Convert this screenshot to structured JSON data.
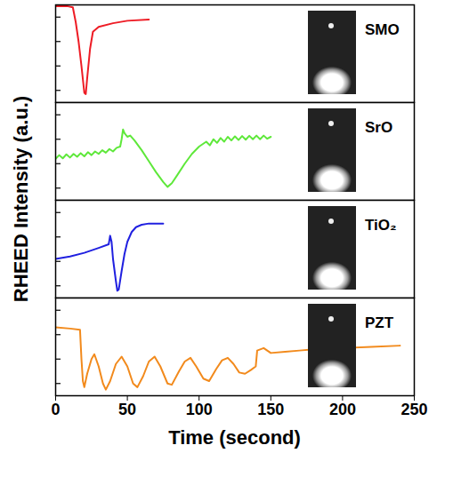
{
  "chart_data": {
    "type": "line",
    "x_label": "Time (second)",
    "y_label": "RHEED Intensity (a.u.)",
    "xlim": [
      0,
      250
    ],
    "xticks": [
      0,
      50,
      100,
      150,
      200,
      250
    ],
    "tick_labels": "x",
    "panels": [
      {
        "title": "SMO",
        "color": "#ee1c25",
        "ylim": [
          0,
          4
        ],
        "yticks": [
          0.5,
          1.5,
          2.5,
          3.5
        ],
        "x": [
          0,
          8,
          12,
          14,
          16,
          18,
          20,
          21,
          22,
          24,
          26,
          30,
          40,
          50,
          65
        ],
        "values": [
          3.95,
          3.95,
          3.9,
          3.3,
          2.5,
          1.5,
          0.4,
          0.35,
          1.0,
          2.2,
          2.9,
          3.1,
          3.25,
          3.35,
          3.4
        ]
      },
      {
        "title": "SrO",
        "color": "#5ee83a",
        "ylim": [
          0,
          4
        ],
        "yticks": [
          0.5,
          1.5,
          2.5,
          3.5
        ],
        "x": [
          0,
          2.5,
          5,
          7.5,
          10,
          12.5,
          15,
          17.5,
          20,
          22.5,
          25,
          27.5,
          30,
          32.5,
          35,
          37.5,
          40,
          42.5,
          45,
          46,
          47,
          48,
          50,
          52,
          55,
          60,
          65,
          70,
          75,
          78,
          81,
          85,
          90,
          95,
          100,
          105,
          107.5,
          110,
          112.5,
          115,
          117.5,
          120,
          122.5,
          125,
          127.5,
          130,
          132.5,
          135,
          137.5,
          140,
          142.5,
          145,
          147.5,
          150
        ],
        "values": [
          1.7,
          1.85,
          1.72,
          1.88,
          1.75,
          1.9,
          1.78,
          1.93,
          1.8,
          1.97,
          1.85,
          2.0,
          1.9,
          2.05,
          1.95,
          2.1,
          2.0,
          2.15,
          2.2,
          2.5,
          2.9,
          2.75,
          2.6,
          2.65,
          2.45,
          2.05,
          1.6,
          1.15,
          0.75,
          0.55,
          0.7,
          1.05,
          1.5,
          1.9,
          2.2,
          2.4,
          2.25,
          2.5,
          2.35,
          2.55,
          2.4,
          2.6,
          2.45,
          2.62,
          2.47,
          2.63,
          2.48,
          2.64,
          2.5,
          2.65,
          2.5,
          2.65,
          2.52,
          2.6
        ]
      },
      {
        "title": "TiO₂",
        "color": "#2020e0",
        "ylim": [
          0,
          4
        ],
        "yticks": [
          0.5,
          1.5,
          2.5,
          3.5
        ],
        "x": [
          0,
          10,
          20,
          30,
          37,
          38,
          39,
          40,
          42,
          43,
          44,
          46,
          48,
          50,
          53,
          56,
          60,
          65,
          75
        ],
        "values": [
          1.6,
          1.7,
          1.85,
          2.05,
          2.2,
          2.55,
          2.3,
          1.6,
          0.7,
          0.3,
          0.35,
          1.1,
          1.8,
          2.3,
          2.7,
          2.9,
          3.0,
          3.05,
          3.05
        ]
      },
      {
        "title": "PZT",
        "color": "#f28a1c",
        "ylim": [
          0,
          4
        ],
        "yticks": [
          0.5,
          1.5,
          2.5,
          3.5
        ],
        "x": [
          0,
          10,
          17,
          18,
          19,
          20,
          22,
          25,
          27,
          30,
          33,
          35,
          38,
          42,
          46,
          50,
          54,
          57,
          61,
          65,
          69,
          73,
          78,
          81,
          86,
          90,
          94,
          98,
          103,
          107,
          112,
          116,
          120,
          124,
          128,
          132,
          136,
          139.5,
          140.5,
          145,
          150,
          160,
          170,
          180,
          200,
          220,
          240
        ],
        "values": [
          2.8,
          2.75,
          2.7,
          1.5,
          0.6,
          0.35,
          0.9,
          1.5,
          1.7,
          1.2,
          0.5,
          0.25,
          0.6,
          1.3,
          1.6,
          1.2,
          0.5,
          0.35,
          0.8,
          1.4,
          1.6,
          1.2,
          0.5,
          0.45,
          1.0,
          1.4,
          1.55,
          1.2,
          0.7,
          0.6,
          1.1,
          1.45,
          1.55,
          1.3,
          0.95,
          0.9,
          1.05,
          1.2,
          1.85,
          1.95,
          1.75,
          1.8,
          1.85,
          1.9,
          1.95,
          2.0,
          2.05
        ]
      }
    ]
  }
}
